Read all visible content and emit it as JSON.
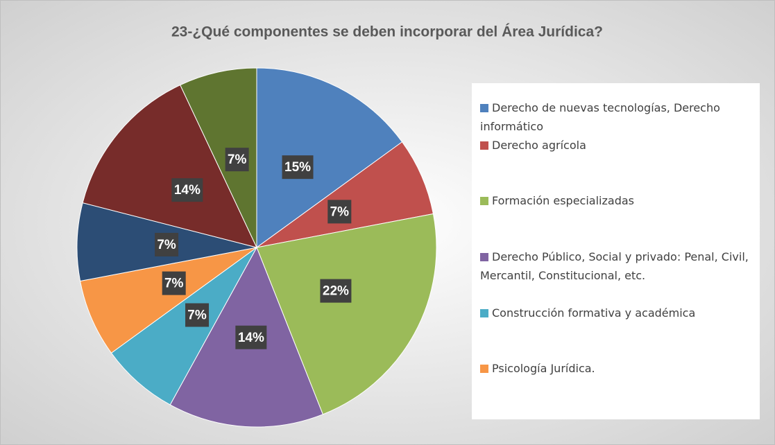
{
  "chart_data": {
    "type": "pie",
    "title": "23-¿Qué componentes se deben incorporar del Área Jurídica?",
    "categories": [
      "Derecho de nuevas tecnologías, Derecho informático",
      "Derecho agrícola",
      "Formación especializadas",
      "Derecho Público, Social y privado: Penal, Civil, Mercantil, Constitucional, etc.",
      "Construcción formativa y académica",
      "Psicología Jurídica.",
      null,
      null,
      null
    ],
    "values": [
      15,
      7,
      22,
      14,
      7,
      7,
      7,
      14,
      7
    ],
    "value_labels": [
      "15%",
      "7%",
      "22%",
      "14%",
      "7%",
      "7%",
      "7%",
      "14%",
      "7%"
    ],
    "colors": [
      "#4f81bd",
      "#c0504d",
      "#9bbb59",
      "#8064a2",
      "#4bacc6",
      "#f79646",
      "#2c4d75",
      "#772c2a",
      "#5f7530"
    ],
    "legend": "right"
  }
}
